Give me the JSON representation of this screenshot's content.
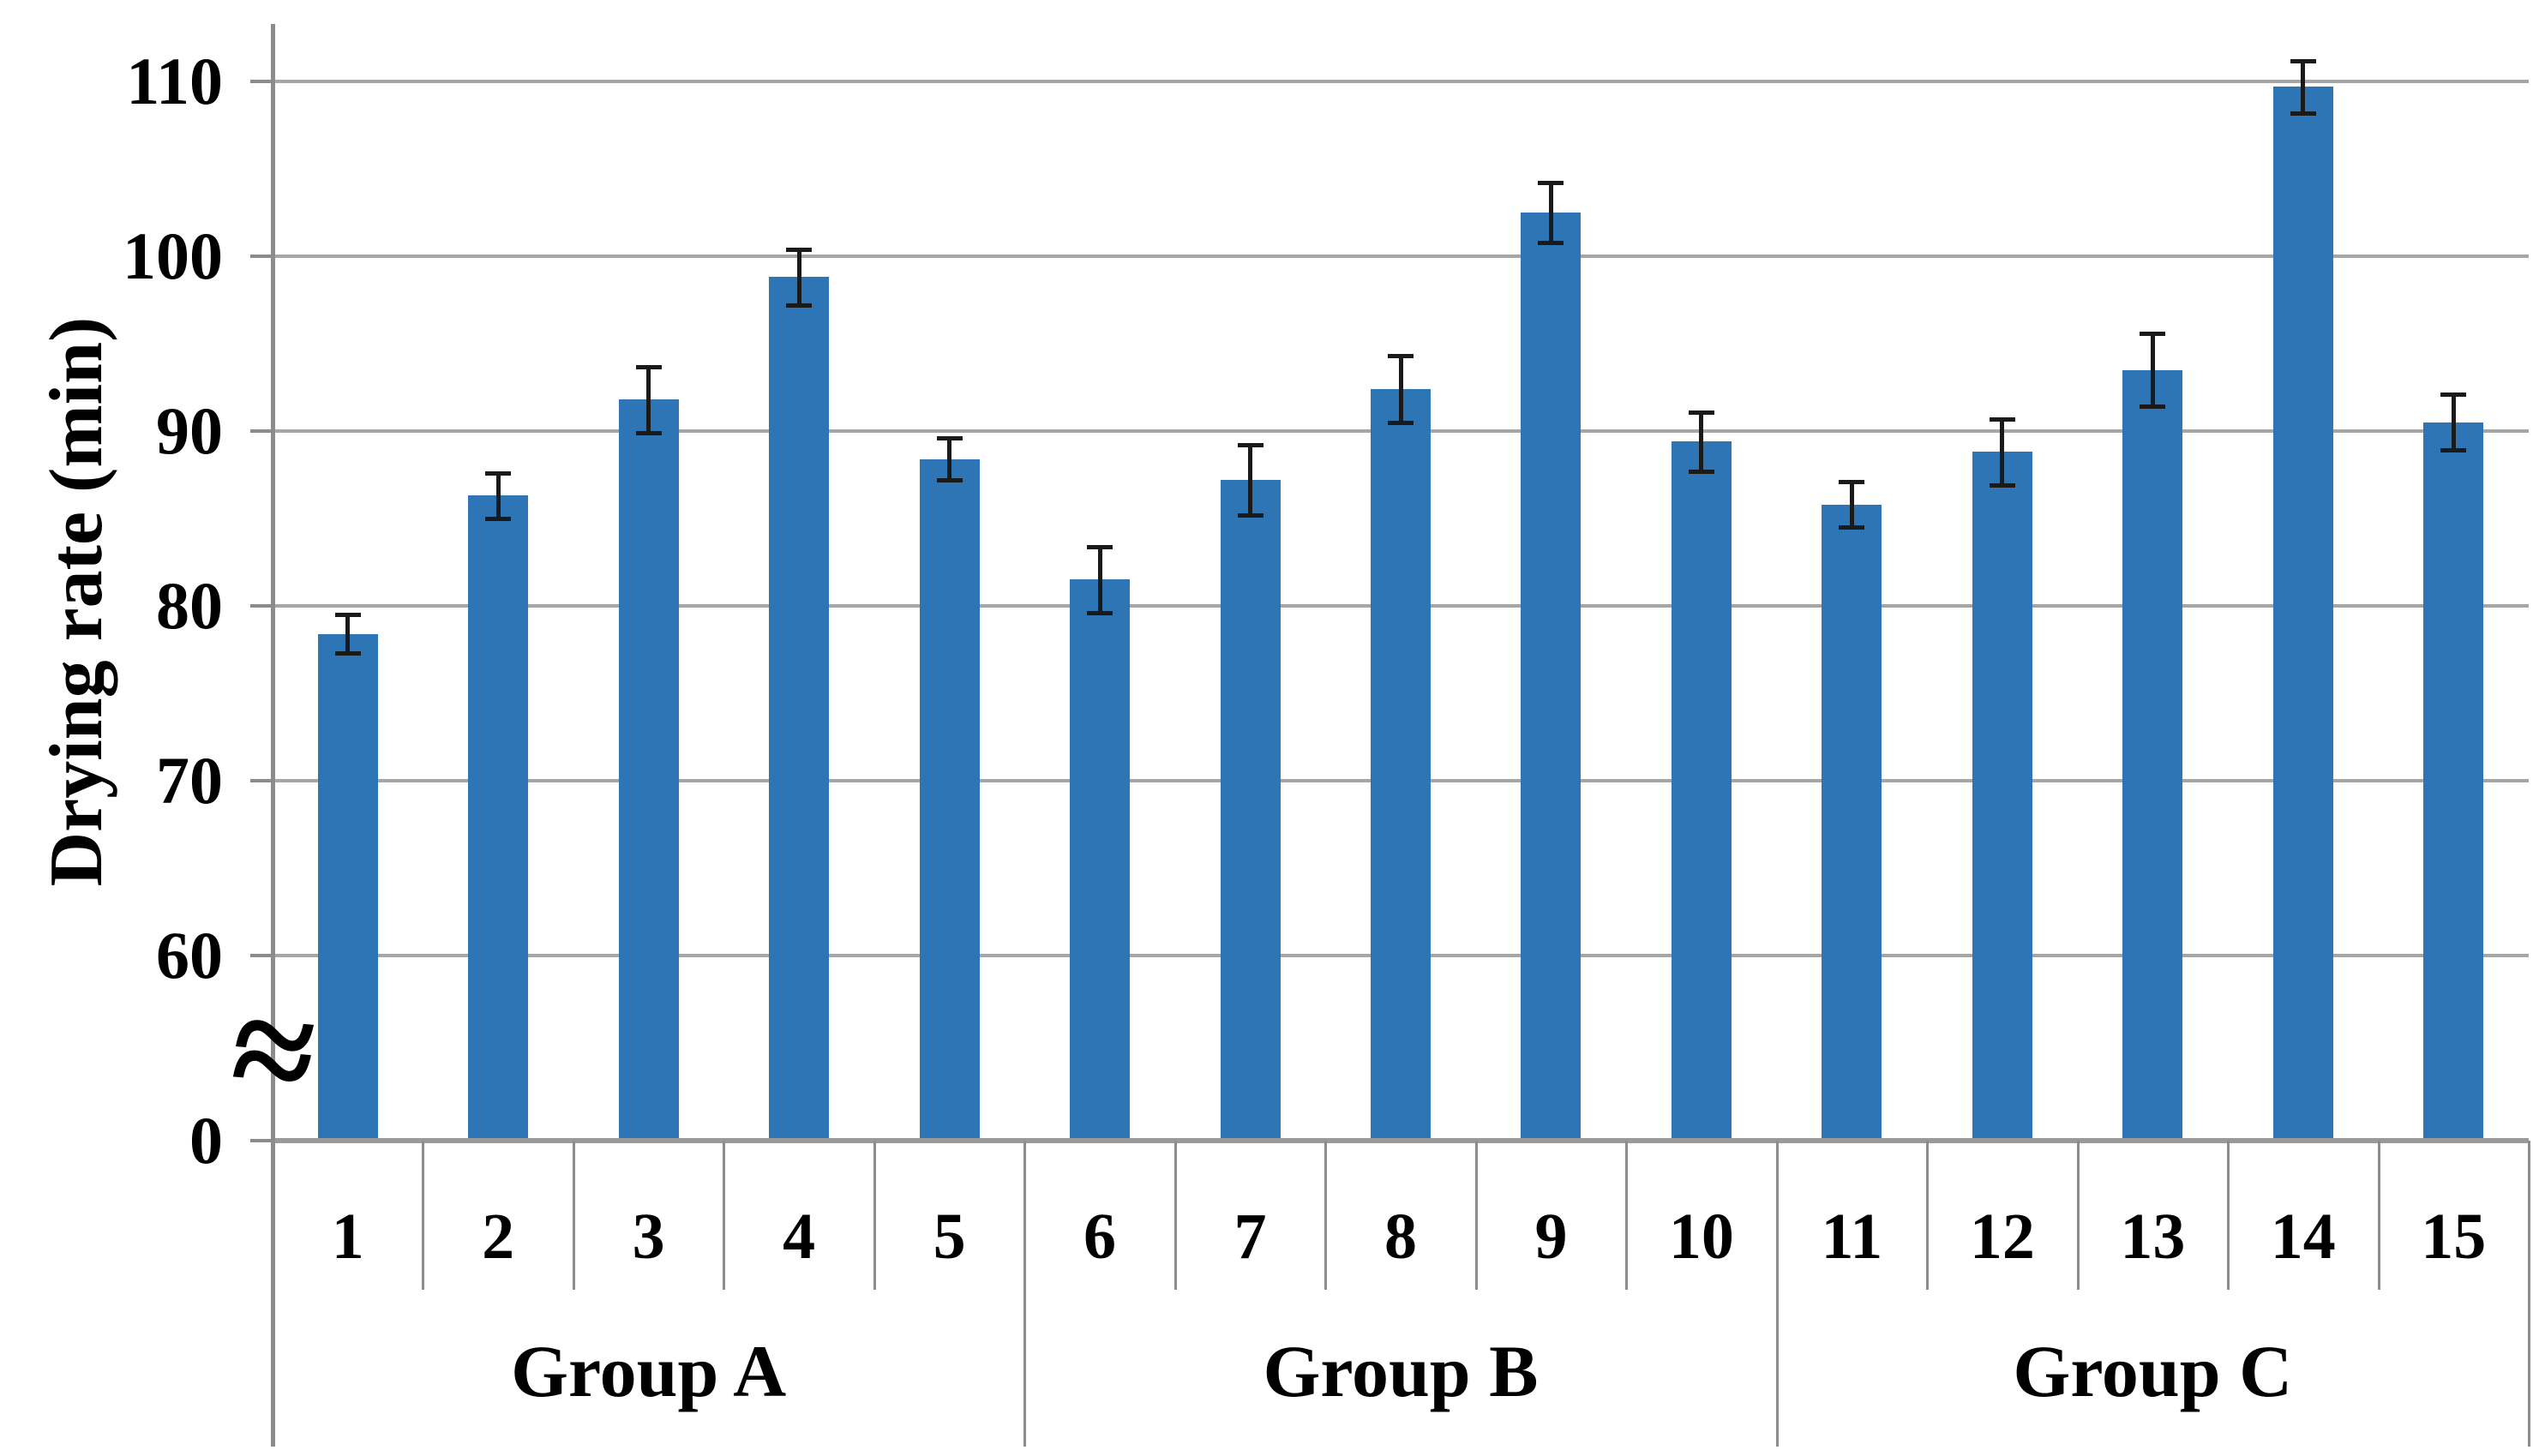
{
  "chart_data": {
    "type": "bar",
    "title": "",
    "ylabel": "Drying rate (min)",
    "xlabel": "",
    "categories": [
      "1",
      "2",
      "3",
      "4",
      "5",
      "6",
      "7",
      "8",
      "9",
      "10",
      "11",
      "12",
      "13",
      "14",
      "15"
    ],
    "values": [
      78.4,
      86.3,
      91.8,
      98.8,
      88.4,
      81.5,
      87.2,
      92.4,
      102.5,
      89.4,
      85.8,
      88.8,
      93.5,
      109.7,
      90.5
    ],
    "errors": [
      1.1,
      1.3,
      1.9,
      1.6,
      1.2,
      1.9,
      2.0,
      1.9,
      1.7,
      1.7,
      1.3,
      1.9,
      2.1,
      1.5,
      1.6
    ],
    "groups": [
      {
        "label": "Group A",
        "start": 1,
        "end": 5
      },
      {
        "label": "Group B",
        "start": 6,
        "end": 10
      },
      {
        "label": "Group C",
        "start": 11,
        "end": 15
      }
    ],
    "yticks": [
      0,
      60,
      70,
      80,
      90,
      100,
      110
    ],
    "ylim": [
      0,
      113
    ],
    "axis_break": {
      "between": [
        0,
        60
      ],
      "symbol": "≈"
    },
    "grid": true,
    "legend": false,
    "bar_color": "#2E75B6",
    "grid_color": "#A6A6A6",
    "axis_color": "#8C8C8C",
    "error_color": "#1A1A1A",
    "text_color": "#000000"
  }
}
